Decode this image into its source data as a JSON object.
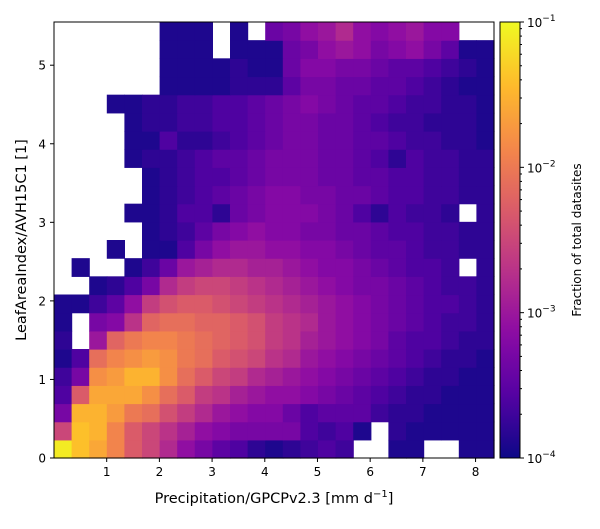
{
  "chart_data": {
    "type": "heatmap",
    "title": "",
    "xlabel_main": "Precipitation/GPCPv2.3 [mm d",
    "xlabel_sup": "−1",
    "xlabel_end": "]",
    "ylabel": "LeafAreaIndex/AVH15C1 [1]",
    "colorbar_label": "Fraction of total datasites",
    "color_scale": "log",
    "colormap": "plasma",
    "vmin": 0.0001,
    "vmax": 0.1,
    "xlim": [
      0.0,
      8.35
    ],
    "ylim": [
      0.0,
      5.55
    ],
    "x_ticks": [
      1,
      2,
      3,
      4,
      5,
      6,
      7,
      8
    ],
    "x_tick_labels": [
      "1",
      "2",
      "3",
      "4",
      "5",
      "6",
      "7",
      "8"
    ],
    "y_ticks": [
      0,
      1,
      2,
      3,
      4,
      5
    ],
    "y_tick_labels": [
      "0",
      "1",
      "2",
      "3",
      "4",
      "5"
    ],
    "colorbar_ticks": [
      0.0001,
      0.001,
      0.01,
      0.1
    ],
    "colorbar_tick_labels": [
      {
        "base": "10",
        "exp": "−4"
      },
      {
        "base": "10",
        "exp": "−3"
      },
      {
        "base": "10",
        "exp": "−2"
      },
      {
        "base": "10",
        "exp": "−1"
      }
    ],
    "x_bin_edges": [
      0.0,
      0.334,
      0.668,
      1.002,
      1.336,
      1.67,
      2.004,
      2.338,
      2.672,
      3.006,
      3.34,
      3.674,
      4.008,
      4.342,
      4.676,
      5.01,
      5.344,
      5.678,
      6.012,
      6.346,
      6.68,
      7.014,
      7.348,
      7.682,
      8.016,
      8.35
    ],
    "y_bin_edges": [
      0.0,
      0.2313,
      0.4625,
      0.6938,
      0.925,
      1.1563,
      1.3875,
      1.6188,
      1.85,
      2.0813,
      2.3125,
      2.5438,
      2.775,
      3.0063,
      3.2375,
      3.4688,
      3.7,
      3.9313,
      4.1625,
      4.3938,
      4.625,
      4.8563,
      5.0875,
      5.3188,
      5.55
    ],
    "log10_fraction_rows_bottom_to_top": [
      [
        -1.1,
        -1.4,
        -1.6,
        -1.9,
        -2.3,
        -2.5,
        -2.8,
        -3.1,
        -3.3,
        -3.5,
        -3.6,
        -3.8,
        -3.9,
        -3.8,
        -3.7,
        -3.6,
        -3.7,
        null,
        null,
        -3.9,
        -3.9,
        null,
        null,
        -3.9,
        -3.9
      ],
      [
        -2.5,
        -1.4,
        -1.5,
        -1.9,
        -2.3,
        -2.5,
        -2.7,
        -2.9,
        -3.1,
        -3.2,
        -3.3,
        -3.3,
        -3.3,
        -3.3,
        -3.6,
        -3.7,
        -3.6,
        -3.9,
        null,
        -3.8,
        -3.9,
        -3.9,
        -3.9,
        -3.9,
        -3.9
      ],
      [
        -3.3,
        -1.5,
        -1.5,
        -1.7,
        -2.0,
        -2.1,
        -2.4,
        -2.6,
        -2.8,
        -3.0,
        -3.1,
        -3.2,
        -3.2,
        -3.4,
        -3.6,
        -3.5,
        -3.5,
        -3.5,
        -3.7,
        -3.8,
        -3.8,
        -3.9,
        -3.9,
        -3.9,
        -3.9
      ],
      [
        -3.6,
        -2.3,
        -1.6,
        -1.6,
        -1.6,
        -1.8,
        -2.1,
        -2.3,
        -2.6,
        -2.7,
        -2.9,
        -3.0,
        -3.1,
        -3.1,
        -3.2,
        -3.3,
        -3.4,
        -3.5,
        -3.6,
        -3.7,
        -3.8,
        -3.8,
        -3.9,
        -3.9,
        -3.9
      ],
      [
        -3.7,
        -3.3,
        -1.8,
        -1.7,
        -1.5,
        -1.5,
        -1.8,
        -2.1,
        -2.3,
        -2.5,
        -2.6,
        -2.8,
        -2.9,
        -3.0,
        -3.1,
        -3.2,
        -3.3,
        -3.4,
        -3.5,
        -3.6,
        -3.7,
        -3.8,
        -3.8,
        -3.9,
        -3.9
      ],
      [
        -3.9,
        -3.6,
        -2.1,
        -1.9,
        -1.8,
        -1.7,
        -1.8,
        -2.0,
        -2.1,
        -2.3,
        -2.4,
        -2.5,
        -2.7,
        -2.8,
        -3.0,
        -3.1,
        -3.2,
        -3.3,
        -3.4,
        -3.5,
        -3.6,
        -3.7,
        -3.8,
        -3.8,
        -3.9
      ],
      [
        -3.8,
        null,
        -3.0,
        -2.2,
        -2.0,
        -1.9,
        -1.9,
        -2.0,
        -2.1,
        -2.2,
        -2.3,
        -2.4,
        -2.6,
        -2.7,
        -2.9,
        -3.0,
        -3.1,
        -3.2,
        -3.3,
        -3.5,
        -3.6,
        -3.6,
        -3.7,
        -3.8,
        -3.8
      ],
      [
        -3.9,
        null,
        -3.3,
        -3.2,
        -2.7,
        -2.2,
        -2.1,
        -2.1,
        -2.2,
        -2.2,
        -2.3,
        -2.4,
        -2.6,
        -2.7,
        -2.8,
        -3.0,
        -3.1,
        -3.2,
        -3.3,
        -3.4,
        -3.5,
        -3.6,
        -3.7,
        -3.7,
        -3.8
      ],
      [
        -3.9,
        -3.9,
        -3.7,
        -3.5,
        -3.1,
        -2.6,
        -2.4,
        -2.3,
        -2.3,
        -2.4,
        -2.5,
        -2.6,
        -2.7,
        -2.8,
        -2.9,
        -3.0,
        -3.1,
        -3.2,
        -3.3,
        -3.4,
        -3.5,
        -3.6,
        -3.6,
        -3.7,
        -3.8
      ],
      [
        null,
        null,
        -3.9,
        -3.8,
        -3.6,
        -3.3,
        -2.8,
        -2.6,
        -2.5,
        -2.5,
        -2.6,
        -2.7,
        -2.8,
        -2.9,
        -3.0,
        -3.1,
        -3.2,
        -3.3,
        -3.3,
        -3.4,
        -3.5,
        -3.6,
        -3.7,
        -3.7,
        -3.8
      ],
      [
        null,
        -3.9,
        null,
        null,
        -3.9,
        -3.7,
        -3.4,
        -3.0,
        -2.9,
        -2.8,
        -2.8,
        -2.9,
        -2.9,
        -3.0,
        -3.1,
        -3.2,
        -3.2,
        -3.3,
        -3.4,
        -3.5,
        -3.6,
        -3.6,
        -3.7,
        null,
        -3.8
      ],
      [
        null,
        null,
        null,
        -3.9,
        null,
        -3.9,
        -3.9,
        -3.6,
        -3.3,
        -3.1,
        -3.0,
        -3.0,
        -3.1,
        -3.1,
        -3.2,
        -3.2,
        -3.3,
        -3.4,
        -3.5,
        -3.5,
        -3.6,
        -3.7,
        -3.7,
        -3.8,
        -3.8
      ],
      [
        null,
        null,
        null,
        null,
        null,
        -3.9,
        -3.8,
        -3.7,
        -3.5,
        -3.3,
        -3.2,
        -3.1,
        -3.2,
        -3.2,
        -3.3,
        -3.3,
        -3.4,
        -3.4,
        -3.5,
        -3.6,
        -3.6,
        -3.7,
        -3.7,
        -3.8,
        -3.8
      ],
      [
        null,
        null,
        null,
        null,
        -3.9,
        -3.9,
        -3.8,
        -3.6,
        -3.6,
        -3.8,
        -3.4,
        -3.3,
        -3.2,
        -3.2,
        -3.2,
        -3.3,
        -3.4,
        -3.6,
        -3.8,
        -3.6,
        -3.7,
        -3.7,
        -3.8,
        null,
        -3.8
      ],
      [
        null,
        null,
        null,
        null,
        null,
        -3.9,
        -3.8,
        -3.7,
        -3.6,
        -3.5,
        -3.4,
        -3.3,
        -3.2,
        -3.2,
        -3.3,
        -3.3,
        -3.4,
        -3.4,
        -3.5,
        -3.6,
        -3.6,
        -3.7,
        -3.7,
        -3.8,
        -3.8
      ],
      [
        null,
        null,
        null,
        null,
        null,
        -3.9,
        -3.8,
        -3.7,
        -3.6,
        -3.6,
        -3.5,
        -3.4,
        -3.3,
        -3.3,
        -3.3,
        -3.4,
        -3.4,
        -3.5,
        -3.5,
        -3.6,
        -3.6,
        -3.7,
        -3.7,
        -3.8,
        -3.8
      ],
      [
        null,
        null,
        null,
        null,
        -3.9,
        -3.8,
        -3.8,
        -3.7,
        -3.6,
        -3.5,
        -3.5,
        -3.4,
        -3.3,
        -3.3,
        -3.3,
        -3.4,
        -3.4,
        -3.5,
        -3.6,
        -3.8,
        -3.6,
        -3.7,
        -3.7,
        -3.8,
        -3.8
      ],
      [
        null,
        null,
        null,
        null,
        -3.9,
        -3.9,
        -3.6,
        -3.8,
        -3.8,
        -3.7,
        -3.6,
        -3.5,
        -3.4,
        -3.3,
        -3.3,
        -3.4,
        -3.4,
        -3.5,
        -3.5,
        -3.6,
        -3.7,
        -3.7,
        -3.8,
        -3.8,
        -3.9
      ],
      [
        null,
        null,
        null,
        null,
        -3.9,
        -3.8,
        -3.8,
        -3.7,
        -3.7,
        -3.6,
        -3.6,
        -3.5,
        -3.4,
        -3.3,
        -3.3,
        -3.4,
        -3.4,
        -3.5,
        -3.6,
        -3.7,
        -3.7,
        -3.8,
        -3.8,
        -3.8,
        -3.9
      ],
      [
        null,
        null,
        null,
        -3.9,
        -3.9,
        -3.8,
        -3.8,
        -3.7,
        -3.7,
        -3.6,
        -3.6,
        -3.5,
        -3.4,
        -3.3,
        -3.2,
        -3.3,
        -3.4,
        -3.5,
        -3.5,
        -3.6,
        -3.7,
        -3.7,
        -3.8,
        -3.8,
        -3.9
      ],
      [
        null,
        null,
        null,
        null,
        null,
        null,
        -3.9,
        -3.9,
        -3.9,
        -3.9,
        -3.8,
        -3.8,
        -3.8,
        -3.5,
        -3.3,
        -3.3,
        -3.4,
        -3.4,
        -3.5,
        -3.5,
        -3.6,
        -3.7,
        -3.8,
        -3.9,
        -3.9
      ],
      [
        null,
        null,
        null,
        null,
        null,
        null,
        -3.9,
        -3.9,
        -3.9,
        -3.9,
        -3.8,
        -3.9,
        -3.9,
        -3.4,
        -3.2,
        -3.2,
        -3.3,
        -3.3,
        -3.4,
        -3.5,
        -3.5,
        -3.6,
        -3.7,
        -3.8,
        -3.9
      ],
      [
        null,
        null,
        null,
        null,
        null,
        null,
        -3.9,
        -3.9,
        -3.9,
        null,
        -3.9,
        -3.9,
        -3.9,
        -3.4,
        -3.3,
        -3.1,
        -3.0,
        -3.1,
        -3.3,
        -3.2,
        -3.1,
        -3.3,
        -3.5,
        -3.9,
        -3.9
      ],
      [
        null,
        null,
        null,
        null,
        null,
        null,
        -3.9,
        -3.9,
        -3.9,
        null,
        -3.9,
        null,
        -3.4,
        -3.3,
        -3.1,
        -3.0,
        -2.8,
        -3.1,
        -3.2,
        -3.1,
        -3.0,
        -3.2,
        -3.2,
        null,
        null
      ]
    ]
  }
}
